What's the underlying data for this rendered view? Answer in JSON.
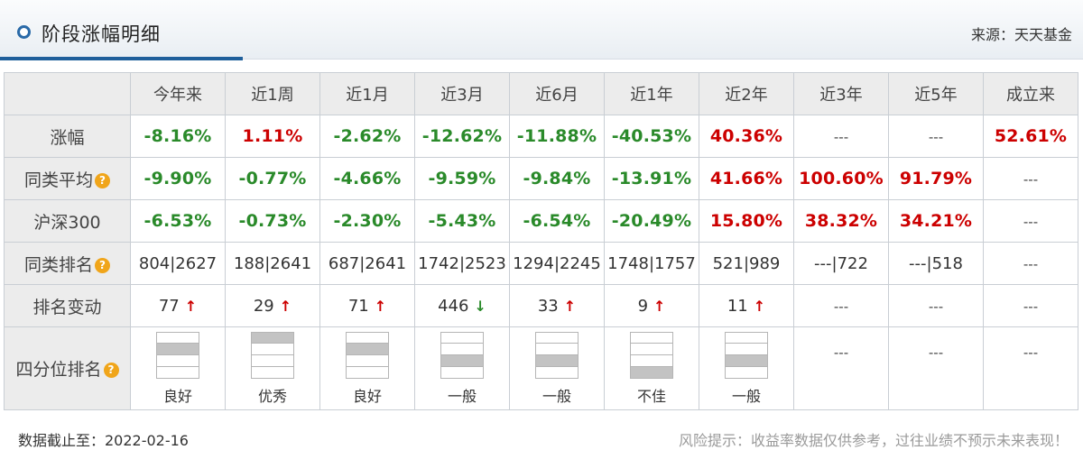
{
  "header": {
    "title": "阶段涨幅明细",
    "source": "来源：天天基金"
  },
  "columns": [
    "今年来",
    "近1周",
    "近1月",
    "近3月",
    "近6月",
    "近1年",
    "近2年",
    "近3年",
    "近5年",
    "成立来"
  ],
  "rows": {
    "gain": {
      "label": "涨幅",
      "values": [
        {
          "text": "-8.16%",
          "tone": "neg"
        },
        {
          "text": "1.11%",
          "tone": "pos"
        },
        {
          "text": "-2.62%",
          "tone": "neg"
        },
        {
          "text": "-12.62%",
          "tone": "neg"
        },
        {
          "text": "-11.88%",
          "tone": "neg"
        },
        {
          "text": "-40.53%",
          "tone": "neg"
        },
        {
          "text": "40.36%",
          "tone": "pos"
        },
        {
          "text": "---",
          "tone": "dash"
        },
        {
          "text": "---",
          "tone": "dash"
        },
        {
          "text": "52.61%",
          "tone": "pos"
        }
      ]
    },
    "peer_avg": {
      "label": "同类平均",
      "values": [
        {
          "text": "-9.90%",
          "tone": "neg"
        },
        {
          "text": "-0.77%",
          "tone": "neg"
        },
        {
          "text": "-4.66%",
          "tone": "neg"
        },
        {
          "text": "-9.59%",
          "tone": "neg"
        },
        {
          "text": "-9.84%",
          "tone": "neg"
        },
        {
          "text": "-13.91%",
          "tone": "neg"
        },
        {
          "text": "41.66%",
          "tone": "pos"
        },
        {
          "text": "100.60%",
          "tone": "pos"
        },
        {
          "text": "91.79%",
          "tone": "pos"
        },
        {
          "text": "---",
          "tone": "dash"
        }
      ]
    },
    "csi300": {
      "label": "沪深300",
      "values": [
        {
          "text": "-6.53%",
          "tone": "neg"
        },
        {
          "text": "-0.73%",
          "tone": "neg"
        },
        {
          "text": "-2.30%",
          "tone": "neg"
        },
        {
          "text": "-5.43%",
          "tone": "neg"
        },
        {
          "text": "-6.54%",
          "tone": "neg"
        },
        {
          "text": "-20.49%",
          "tone": "neg"
        },
        {
          "text": "15.80%",
          "tone": "pos"
        },
        {
          "text": "38.32%",
          "tone": "pos"
        },
        {
          "text": "34.21%",
          "tone": "pos"
        },
        {
          "text": "---",
          "tone": "dash"
        }
      ]
    },
    "peer_rank": {
      "label": "同类排名",
      "values": [
        "804|2627",
        "188|2641",
        "687|2641",
        "1742|2523",
        "1294|2245",
        "1748|1757",
        "521|989",
        "---|722",
        "---|518",
        "---"
      ]
    },
    "rank_change": {
      "label": "排名变动",
      "values": [
        {
          "text": "77",
          "dir": "up"
        },
        {
          "text": "29",
          "dir": "up"
        },
        {
          "text": "71",
          "dir": "up"
        },
        {
          "text": "446",
          "dir": "down"
        },
        {
          "text": "33",
          "dir": "up"
        },
        {
          "text": "9",
          "dir": "up"
        },
        {
          "text": "11",
          "dir": "up"
        },
        {
          "text": "---",
          "dir": "none"
        },
        {
          "text": "---",
          "dir": "none"
        },
        {
          "text": "---",
          "dir": "none"
        }
      ]
    },
    "quartile": {
      "label": "四分位排名",
      "values": [
        {
          "text": "良好",
          "quartile": 2
        },
        {
          "text": "优秀",
          "quartile": 1
        },
        {
          "text": "良好",
          "quartile": 2
        },
        {
          "text": "一般",
          "quartile": 3
        },
        {
          "text": "一般",
          "quartile": 3
        },
        {
          "text": "不佳",
          "quartile": 4
        },
        {
          "text": "一般",
          "quartile": 3
        },
        {
          "text": "---",
          "quartile": 0
        },
        {
          "text": "---",
          "quartile": 0
        },
        {
          "text": "---",
          "quartile": 0
        }
      ]
    }
  },
  "icons": {
    "help": "question-circle-icon",
    "help_glyph": "?",
    "arrow_up_glyph": "↑",
    "arrow_down_glyph": "↓"
  },
  "colors": {
    "positive": "#cc0000",
    "negative": "#2a8a2a",
    "accent": "#1f5f9b",
    "help_icon": "#f0a51a"
  },
  "footer": {
    "date": "数据截止至：2022-02-16",
    "risk": "风险提示：收益率数据仅供参考，过往业绩不预示未来表现！"
  }
}
